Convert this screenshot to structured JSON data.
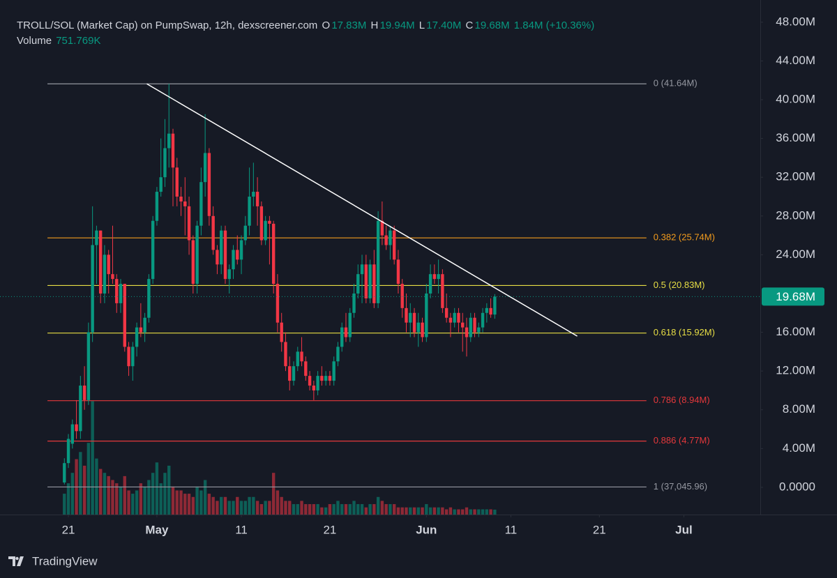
{
  "chart_data": {
    "type": "candlestick",
    "title": "TROLL/SOL (Market Cap) on PumpSwap, 12h, dexscreener.com",
    "legend_ohlc": [
      {
        "label": "O",
        "value": "17.83M"
      },
      {
        "label": "H",
        "value": "19.94M"
      },
      {
        "label": "L",
        "value": "17.40M"
      },
      {
        "label": "C",
        "value": "19.68M"
      }
    ],
    "change_label": "1.84M (+10.36%)",
    "volume_title": "Volume",
    "volume_value_label": "751.769K",
    "last_price_label": "19.68M",
    "up_color": "#089981",
    "down_color": "#f23645",
    "open": [
      0.5,
      2.5,
      4.5,
      6.5,
      5.8,
      10.5,
      9,
      16,
      25,
      26.5,
      20,
      24,
      22,
      21.5,
      19,
      21,
      14.5,
      12.5,
      14.5,
      16.5,
      16,
      17.5,
      21.5,
      27.5,
      30.5,
      32,
      35,
      36.5,
      33,
      30,
      29.5,
      29,
      25.5,
      21,
      27,
      31.5,
      34.5,
      28,
      24.5,
      23,
      26.5,
      21.5,
      22.5,
      24.5,
      23.5,
      25.5,
      27,
      30,
      30.5,
      29,
      25.5,
      27.5,
      27.2,
      21,
      17,
      15,
      12.5,
      11,
      12.5,
      14,
      13,
      11.5,
      10.5,
      10,
      11.5,
      11,
      11.5,
      11,
      13,
      14.5,
      16.5,
      15.5,
      18,
      20,
      22,
      23,
      19.5,
      23,
      19,
      27.5,
      26,
      25,
      26.5,
      23.5,
      21,
      18.5,
      17,
      18,
      16,
      17,
      15.5,
      20,
      22,
      21.5,
      22,
      18.5,
      17.5,
      17,
      18,
      17,
      16.5,
      15.5,
      17.5,
      16,
      16.5,
      18,
      18.5,
      17.83
    ],
    "high": [
      3,
      5.5,
      7,
      9,
      11.5,
      12.5,
      17,
      29,
      27,
      26.5,
      25,
      24.5,
      27,
      22,
      21.5,
      21,
      15,
      15,
      17,
      19,
      18,
      22,
      28,
      31,
      36,
      38,
      41.64,
      37,
      34,
      31,
      32,
      30,
      26,
      27.5,
      33,
      38.5,
      35,
      29,
      25,
      27,
      27,
      23,
      25,
      26,
      26,
      28,
      33,
      33.5,
      32,
      29.5,
      28,
      28,
      27.5,
      22,
      18,
      16,
      13.5,
      13,
      14.5,
      15.5,
      13.5,
      12,
      11,
      12,
      12.5,
      12,
      12,
      13.5,
      15,
      17,
      18,
      18.5,
      21,
      23,
      24,
      24,
      23.5,
      24.5,
      28.5,
      29.5,
      27,
      27,
      27,
      24.5,
      21.5,
      20,
      19,
      18.5,
      18,
      17.5,
      21,
      23,
      23,
      23.5,
      22.5,
      20,
      18,
      18.5,
      18.5,
      18,
      17.5,
      18,
      18,
      17,
      18.5,
      19,
      19.5,
      19.94
    ],
    "low": [
      0.3,
      2,
      4,
      5,
      5,
      8,
      8.5,
      15,
      21,
      19,
      19,
      20,
      21,
      18,
      18,
      14,
      11.5,
      11,
      13.5,
      15.5,
      15,
      17,
      21,
      27,
      30,
      31,
      33,
      29,
      29,
      28,
      26,
      24,
      20,
      20,
      26,
      30,
      27,
      24,
      22,
      22,
      21,
      20,
      21.5,
      23,
      22,
      25,
      26,
      29,
      27,
      25,
      25,
      23,
      20,
      16,
      14,
      12,
      10,
      10.5,
      12,
      12.5,
      11,
      10,
      9,
      9.5,
      10.5,
      10.5,
      10.5,
      10.5,
      12.5,
      14,
      15,
      15,
      17.5,
      19.5,
      19,
      19,
      19,
      18.5,
      18.5,
      25,
      24.5,
      23.5,
      23,
      20,
      17.5,
      16,
      15.5,
      15.5,
      14.5,
      15,
      15,
      19.5,
      21,
      20,
      18,
      17,
      15.5,
      16.5,
      16,
      14,
      13.5,
      15,
      15.5,
      15.5,
      16,
      17,
      17.5,
      17.4
    ],
    "close": [
      2.5,
      5,
      6.5,
      5.8,
      10.5,
      9,
      16,
      25,
      26.5,
      20,
      24,
      22,
      21.5,
      19,
      21,
      14.5,
      12.5,
      14.5,
      16.5,
      16,
      17.5,
      21.5,
      27.5,
      30.5,
      32,
      35,
      36.5,
      33,
      30,
      29.5,
      29,
      25.5,
      21,
      27,
      31.5,
      34.5,
      28,
      24.5,
      23,
      26.5,
      21.5,
      22.5,
      24.5,
      23.5,
      25.5,
      27,
      30,
      30.5,
      29,
      25.5,
      27.5,
      27.2,
      21,
      17,
      15,
      12.5,
      11,
      12.5,
      14,
      13,
      11.5,
      10.5,
      10,
      11.5,
      11,
      11.5,
      11,
      13,
      14.5,
      16.5,
      15.5,
      18,
      20,
      22,
      23,
      19.5,
      23,
      19,
      27.5,
      26,
      25,
      26.5,
      23.5,
      21,
      18.5,
      17,
      18,
      16,
      17,
      15.5,
      20,
      22,
      21.5,
      22,
      18.5,
      17.5,
      17,
      18,
      17,
      16.5,
      15.5,
      17.5,
      16,
      16.5,
      18,
      18.5,
      17.83,
      19.68
    ],
    "volume": [
      3200,
      4800,
      6400,
      8500,
      9600,
      7500,
      11000,
      17400,
      8600,
      7000,
      6400,
      5900,
      5300,
      4800,
      4300,
      5900,
      3700,
      3200,
      3700,
      4800,
      4300,
      5300,
      6400,
      8000,
      4800,
      6400,
      7500,
      4300,
      3700,
      3700,
      3200,
      3200,
      2700,
      4300,
      3700,
      5300,
      3200,
      2700,
      2100,
      2700,
      2700,
      2100,
      2100,
      2700,
      2100,
      2100,
      2700,
      2700,
      2100,
      1600,
      2100,
      2100,
      6400,
      3700,
      2700,
      2100,
      2100,
      1600,
      1600,
      2100,
      1600,
      1600,
      1600,
      1600,
      1100,
      1100,
      1600,
      1600,
      2100,
      1600,
      1600,
      1600,
      2100,
      1600,
      1600,
      1100,
      1600,
      1600,
      2700,
      2100,
      1600,
      1600,
      1600,
      1100,
      1100,
      1100,
      1100,
      1100,
      1100,
      1100,
      1600,
      1100,
      1100,
      1100,
      1100,
      800,
      1100,
      800,
      800,
      800,
      1100,
      800,
      800,
      800,
      800,
      800,
      800,
      751.769
    ],
    "xlim": [
      -16,
      173
    ],
    "xticks": [
      {
        "value": 1,
        "label": "21"
      },
      {
        "value": 23,
        "label": "May"
      },
      {
        "value": 44,
        "label": "11"
      },
      {
        "value": 66,
        "label": "21"
      },
      {
        "value": 90,
        "label": "Jun"
      },
      {
        "value": 111,
        "label": "11"
      },
      {
        "value": 133,
        "label": "21"
      },
      {
        "value": 154,
        "label": "Jul"
      }
    ],
    "ylim": [
      -2.81,
      50.29
    ],
    "yticks": [
      {
        "value": 0,
        "label": "0.0000"
      },
      {
        "value": 4,
        "label": "4.00M"
      },
      {
        "value": 8,
        "label": "8.00M"
      },
      {
        "value": 12,
        "label": "12.00M"
      },
      {
        "value": 16,
        "label": "16.00M"
      },
      {
        "value": 24,
        "label": "24.00M"
      },
      {
        "value": 28,
        "label": "28.00M"
      },
      {
        "value": 32,
        "label": "32.00M"
      },
      {
        "value": 36,
        "label": "36.00M"
      },
      {
        "value": 40,
        "label": "40.00M"
      },
      {
        "value": 44,
        "label": "44.00M"
      },
      {
        "value": 48,
        "label": "48.00M"
      }
    ],
    "fib_levels": [
      {
        "value": 41.64,
        "label": "0 (41.64M)",
        "color": "#9598a1"
      },
      {
        "value": 25.74,
        "label": "0.382 (25.74M)",
        "color": "#f29b1d"
      },
      {
        "value": 20.83,
        "label": "0.5 (20.83M)",
        "color": "#e8df45"
      },
      {
        "value": 15.92,
        "label": "0.618 (15.92M)",
        "color": "#e8df45"
      },
      {
        "value": 8.94,
        "label": "0.786 (8.94M)",
        "color": "#e5383b"
      },
      {
        "value": 4.77,
        "label": "0.886 (4.77M)",
        "color": "#e5383b"
      },
      {
        "value": 0.03704596,
        "label": "1 (37,045.96)",
        "color": "#9598a1"
      }
    ],
    "fib_x": [
      -4.2,
      144.7
    ],
    "trendline": {
      "x": [
        20.5,
        127.5
      ],
      "y": [
        41.64,
        15.6
      ],
      "color": "#ffffff"
    },
    "branding": "TradingView"
  }
}
